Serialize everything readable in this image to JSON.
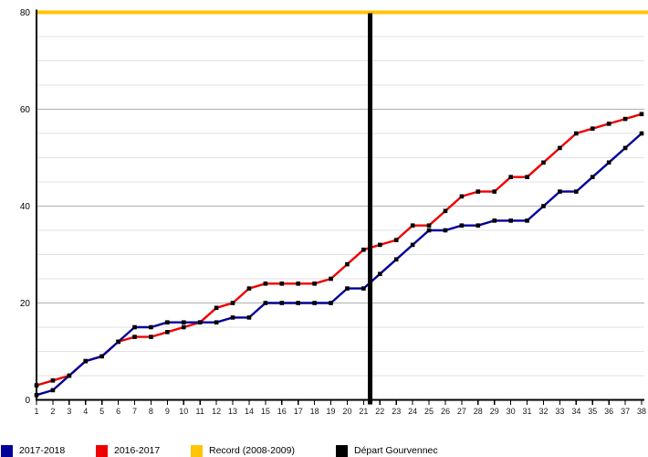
{
  "chart_data": {
    "type": "line",
    "title": "",
    "xlabel": "",
    "ylabel": "",
    "x": [
      1,
      2,
      3,
      4,
      5,
      6,
      7,
      8,
      9,
      10,
      11,
      12,
      13,
      14,
      15,
      16,
      17,
      18,
      19,
      20,
      21,
      22,
      23,
      24,
      25,
      26,
      27,
      28,
      29,
      30,
      31,
      32,
      33,
      34,
      35,
      36,
      37,
      38
    ],
    "series": [
      {
        "name": "2017-2018",
        "color": "#000099",
        "values": [
          1,
          2,
          5,
          8,
          9,
          12,
          15,
          15,
          16,
          16,
          16,
          16,
          17,
          17,
          20,
          20,
          20,
          20,
          20,
          23,
          23,
          26,
          29,
          32,
          35,
          35,
          36,
          36,
          37,
          37,
          37,
          40,
          43,
          43,
          46,
          49,
          52,
          55
        ]
      },
      {
        "name": "2016-2017",
        "color": "#ee0000",
        "values": [
          3,
          4,
          5,
          8,
          9,
          12,
          13,
          13,
          14,
          15,
          16,
          19,
          20,
          23,
          24,
          24,
          24,
          24,
          25,
          28,
          31,
          32,
          33,
          36,
          36,
          39,
          42,
          43,
          43,
          46,
          46,
          49,
          52,
          55,
          56,
          57,
          58,
          59
        ]
      }
    ],
    "record_line": {
      "label": "Record (2008-2009)",
      "value": 80,
      "color": "#ffc408"
    },
    "event_line": {
      "label": "Départ Gourvennec",
      "x": 21.4,
      "color": "#000000"
    },
    "ylim": [
      0,
      80
    ],
    "yticks": [
      0,
      20,
      40,
      60,
      80
    ],
    "minor_grid_step": 5,
    "grid": true,
    "marker": "black-square",
    "legend_position": "bottom",
    "colors": {
      "axis": "#000000",
      "major_grid": "#b0b0b0",
      "minor_grid": "#e2e2e2",
      "tick_text": "#1a1a1a",
      "marker": "#000000"
    }
  }
}
